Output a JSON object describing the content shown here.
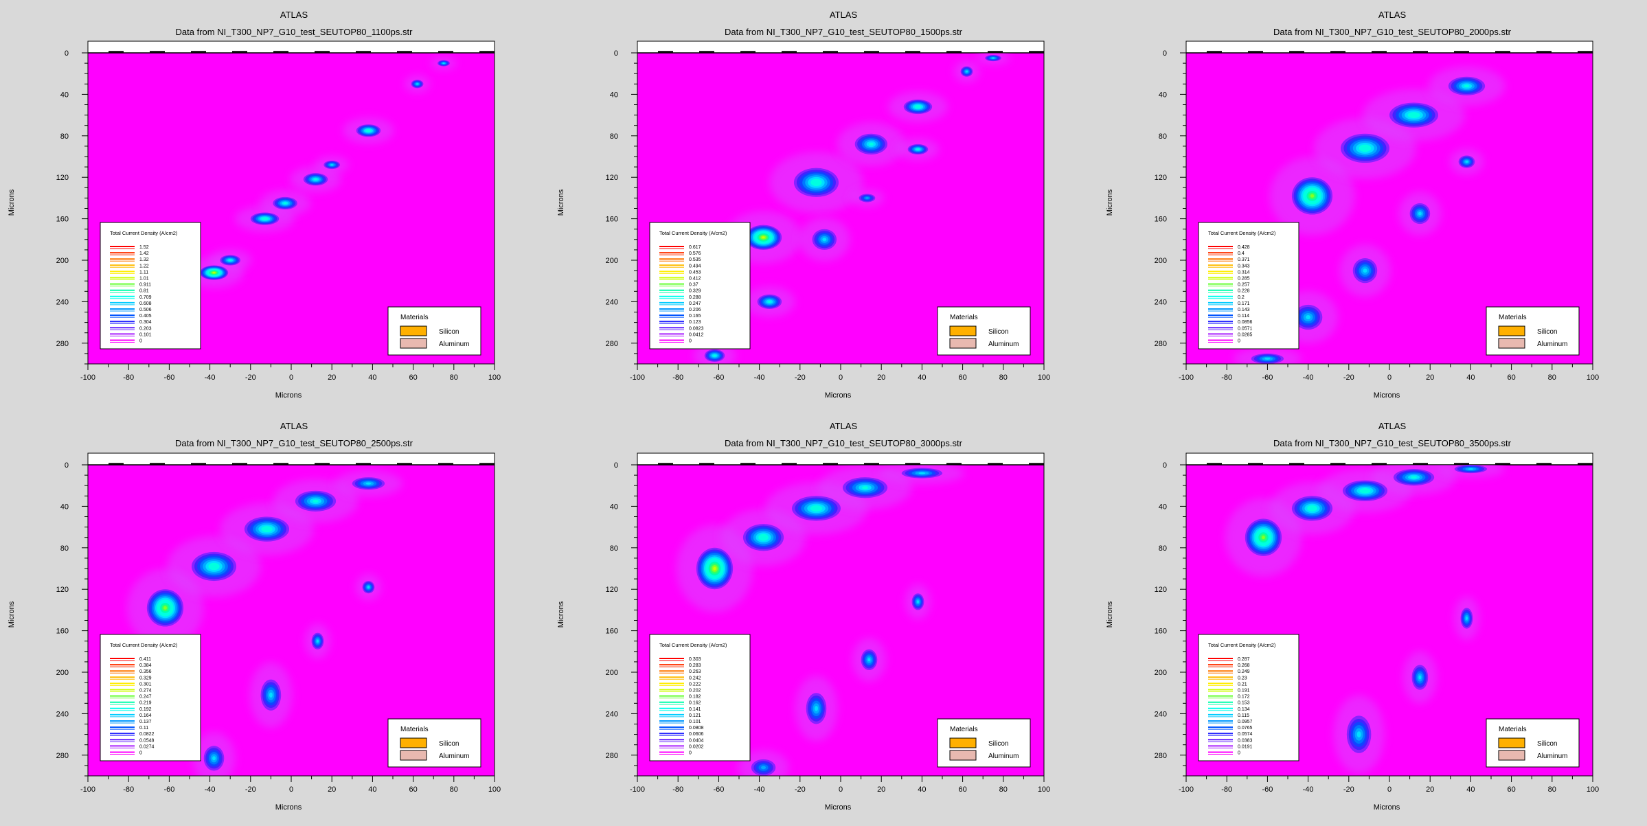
{
  "chart_data": [
    {
      "type": "heatmap",
      "product": "ATLAS",
      "title": "Data from NI_T300_NP7_G10_test_SEUTOP80_1100ps.str",
      "xlabel": "Microns",
      "ylabel": "Microns",
      "xlim": [
        -100,
        100
      ],
      "ylim": [
        0,
        300
      ],
      "y_inverted": true,
      "xticks": [
        "-100",
        "-80",
        "-60",
        "-40",
        "-20",
        "0",
        "20",
        "40",
        "60",
        "80",
        "100"
      ],
      "yticks": [
        "0",
        "40",
        "80",
        "120",
        "160",
        "200",
        "240",
        "280"
      ],
      "legend_title": "Total Current Density (A/cm2)",
      "legend_values": [
        "1.52",
        "1.42",
        "1.32",
        "1.22",
        "1.11",
        "1.01",
        "0.911",
        "0.81",
        "0.709",
        "0.608",
        "0.506",
        "0.405",
        "0.304",
        "0.203",
        "0.101",
        "0"
      ],
      "materials_title": "Materials",
      "materials": [
        {
          "name": "Silicon",
          "color": "#ffb000"
        },
        {
          "name": "Aluminum",
          "color": "#e8b9b0"
        }
      ],
      "hotspots": [
        {
          "x": -38,
          "y": 212,
          "rx": 7,
          "ry": 7,
          "level": 0.95
        },
        {
          "x": -30,
          "y": 200,
          "rx": 5,
          "ry": 5,
          "level": 0.5
        },
        {
          "x": -13,
          "y": 160,
          "rx": 7,
          "ry": 6,
          "level": 0.55
        },
        {
          "x": -3,
          "y": 145,
          "rx": 6,
          "ry": 6,
          "level": 0.5
        },
        {
          "x": 12,
          "y": 122,
          "rx": 6,
          "ry": 6,
          "level": 0.5
        },
        {
          "x": 20,
          "y": 108,
          "rx": 4,
          "ry": 4,
          "level": 0.4
        },
        {
          "x": 38,
          "y": 75,
          "rx": 6,
          "ry": 6,
          "level": 0.55
        },
        {
          "x": 62,
          "y": 30,
          "rx": 3,
          "ry": 4,
          "level": 0.45
        },
        {
          "x": 75,
          "y": 10,
          "rx": 3,
          "ry": 3,
          "level": 0.4
        }
      ]
    },
    {
      "type": "heatmap",
      "product": "ATLAS",
      "title": "Data from NI_T300_NP7_G10_test_SEUTOP80_1500ps.str",
      "xlabel": "Microns",
      "ylabel": "Microns",
      "xlim": [
        -100,
        100
      ],
      "ylim": [
        0,
        300
      ],
      "y_inverted": true,
      "xticks": [
        "-100",
        "-80",
        "-60",
        "-40",
        "-20",
        "0",
        "20",
        "40",
        "60",
        "80",
        "100"
      ],
      "yticks": [
        "0",
        "40",
        "80",
        "120",
        "160",
        "200",
        "240",
        "280"
      ],
      "legend_title": "Total Current Density (A/cm2)",
      "legend_values": [
        "0.617",
        "0.576",
        "0.535",
        "0.494",
        "0.453",
        "0.412",
        "0.37",
        "0.329",
        "0.288",
        "0.247",
        "0.206",
        "0.165",
        "0.123",
        "0.0823",
        "0.0412",
        "0"
      ],
      "materials_title": "Materials",
      "materials": [
        {
          "name": "Silicon",
          "color": "#ffb000"
        },
        {
          "name": "Aluminum",
          "color": "#e8b9b0"
        }
      ],
      "hotspots": [
        {
          "x": -62,
          "y": 292,
          "rx": 5,
          "ry": 6,
          "level": 0.5
        },
        {
          "x": -38,
          "y": 178,
          "rx": 9,
          "ry": 12,
          "level": 0.9
        },
        {
          "x": -35,
          "y": 240,
          "rx": 6,
          "ry": 7,
          "level": 0.5
        },
        {
          "x": -12,
          "y": 125,
          "rx": 11,
          "ry": 14,
          "level": 0.55
        },
        {
          "x": -8,
          "y": 180,
          "rx": 6,
          "ry": 10,
          "level": 0.45
        },
        {
          "x": 15,
          "y": 88,
          "rx": 8,
          "ry": 10,
          "level": 0.5
        },
        {
          "x": 13,
          "y": 140,
          "rx": 4,
          "ry": 4,
          "level": 0.35
        },
        {
          "x": 38,
          "y": 52,
          "rx": 7,
          "ry": 7,
          "level": 0.6
        },
        {
          "x": 38,
          "y": 93,
          "rx": 5,
          "ry": 5,
          "level": 0.5
        },
        {
          "x": 62,
          "y": 18,
          "rx": 3,
          "ry": 5,
          "level": 0.4
        },
        {
          "x": 75,
          "y": 5,
          "rx": 4,
          "ry": 3,
          "level": 0.4
        }
      ]
    },
    {
      "type": "heatmap",
      "product": "ATLAS",
      "title": "Data from NI_T300_NP7_G10_test_SEUTOP80_2000ps.str",
      "xlabel": "Microns",
      "ylabel": "Microns",
      "xlim": [
        -100,
        100
      ],
      "ylim": [
        0,
        300
      ],
      "y_inverted": true,
      "xticks": [
        "-100",
        "-80",
        "-60",
        "-40",
        "-20",
        "0",
        "20",
        "40",
        "60",
        "80",
        "100"
      ],
      "yticks": [
        "0",
        "40",
        "80",
        "120",
        "160",
        "200",
        "240",
        "280"
      ],
      "legend_title": "Total Current Density (A/cm2)",
      "legend_values": [
        "0.428",
        "0.4",
        "0.371",
        "0.343",
        "0.314",
        "0.285",
        "0.257",
        "0.228",
        "0.2",
        "0.171",
        "0.143",
        "0.114",
        "0.0856",
        "0.0571",
        "0.0285",
        "0"
      ],
      "materials_title": "Materials",
      "materials": [
        {
          "name": "Silicon",
          "color": "#ffb000"
        },
        {
          "name": "Aluminum",
          "color": "#e8b9b0"
        }
      ],
      "hotspots": [
        {
          "x": -60,
          "y": 295,
          "rx": 8,
          "ry": 5,
          "level": 0.4
        },
        {
          "x": -38,
          "y": 138,
          "rx": 10,
          "ry": 18,
          "level": 0.8
        },
        {
          "x": -12,
          "y": 92,
          "rx": 12,
          "ry": 14,
          "level": 0.6
        },
        {
          "x": 12,
          "y": 60,
          "rx": 12,
          "ry": 12,
          "level": 0.55
        },
        {
          "x": 38,
          "y": 32,
          "rx": 9,
          "ry": 9,
          "level": 0.5
        },
        {
          "x": 38,
          "y": 105,
          "rx": 4,
          "ry": 6,
          "level": 0.45
        },
        {
          "x": 15,
          "y": 155,
          "rx": 5,
          "ry": 10,
          "level": 0.4
        },
        {
          "x": -12,
          "y": 210,
          "rx": 6,
          "ry": 12,
          "level": 0.4
        },
        {
          "x": -40,
          "y": 255,
          "rx": 7,
          "ry": 12,
          "level": 0.4
        }
      ]
    },
    {
      "type": "heatmap",
      "product": "ATLAS",
      "title": "Data from NI_T300_NP7_G10_test_SEUTOP80_2500ps.str",
      "xlabel": "Microns",
      "ylabel": "Microns",
      "xlim": [
        -100,
        100
      ],
      "ylim": [
        0,
        300
      ],
      "y_inverted": true,
      "xticks": [
        "-100",
        "-80",
        "-60",
        "-40",
        "-20",
        "0",
        "20",
        "40",
        "60",
        "80",
        "100"
      ],
      "yticks": [
        "0",
        "40",
        "80",
        "120",
        "160",
        "200",
        "240",
        "280"
      ],
      "legend_title": "Total Current Density (A/cm2)",
      "legend_values": [
        "0.411",
        "0.384",
        "0.356",
        "0.329",
        "0.301",
        "0.274",
        "0.247",
        "0.219",
        "0.192",
        "0.164",
        "0.137",
        "0.11",
        "0.0822",
        "0.0548",
        "0.0274",
        "0"
      ],
      "materials_title": "Materials",
      "materials": [
        {
          "name": "Silicon",
          "color": "#ffb000"
        },
        {
          "name": "Aluminum",
          "color": "#e8b9b0"
        }
      ],
      "hotspots": [
        {
          "x": -62,
          "y": 138,
          "rx": 9,
          "ry": 18,
          "level": 0.85
        },
        {
          "x": -38,
          "y": 98,
          "rx": 11,
          "ry": 14,
          "level": 0.6
        },
        {
          "x": -12,
          "y": 62,
          "rx": 11,
          "ry": 12,
          "level": 0.55
        },
        {
          "x": 12,
          "y": 35,
          "rx": 10,
          "ry": 10,
          "level": 0.5
        },
        {
          "x": 38,
          "y": 18,
          "rx": 8,
          "ry": 6,
          "level": 0.45
        },
        {
          "x": 38,
          "y": 118,
          "rx": 3,
          "ry": 6,
          "level": 0.45
        },
        {
          "x": 13,
          "y": 170,
          "rx": 3,
          "ry": 8,
          "level": 0.4
        },
        {
          "x": -10,
          "y": 222,
          "rx": 5,
          "ry": 15,
          "level": 0.4
        },
        {
          "x": -38,
          "y": 283,
          "rx": 5,
          "ry": 12,
          "level": 0.4
        }
      ]
    },
    {
      "type": "heatmap",
      "product": "ATLAS",
      "title": "Data from NI_T300_NP7_G10_test_SEUTOP80_3000ps.str",
      "xlabel": "Microns",
      "ylabel": "Microns",
      "xlim": [
        -100,
        100
      ],
      "ylim": [
        0,
        300
      ],
      "y_inverted": true,
      "xticks": [
        "-100",
        "-80",
        "-60",
        "-40",
        "-20",
        "0",
        "20",
        "40",
        "60",
        "80",
        "100"
      ],
      "yticks": [
        "0",
        "40",
        "80",
        "120",
        "160",
        "200",
        "240",
        "280"
      ],
      "legend_title": "Total Current Density (A/cm2)",
      "legend_values": [
        "0.303",
        "0.283",
        "0.263",
        "0.242",
        "0.222",
        "0.202",
        "0.182",
        "0.162",
        "0.141",
        "0.121",
        "0.101",
        "0.0808",
        "0.0606",
        "0.0404",
        "0.0202",
        "0"
      ],
      "materials_title": "Materials",
      "materials": [
        {
          "name": "Silicon",
          "color": "#ffb000"
        },
        {
          "name": "Aluminum",
          "color": "#e8b9b0"
        }
      ],
      "hotspots": [
        {
          "x": -62,
          "y": 100,
          "rx": 9,
          "ry": 20,
          "level": 0.9
        },
        {
          "x": -38,
          "y": 70,
          "rx": 10,
          "ry": 13,
          "level": 0.6
        },
        {
          "x": -12,
          "y": 42,
          "rx": 12,
          "ry": 12,
          "level": 0.55
        },
        {
          "x": 12,
          "y": 22,
          "rx": 11,
          "ry": 10,
          "level": 0.5
        },
        {
          "x": 40,
          "y": 8,
          "rx": 10,
          "ry": 5,
          "level": 0.4
        },
        {
          "x": 38,
          "y": 132,
          "rx": 3,
          "ry": 8,
          "level": 0.45
        },
        {
          "x": 14,
          "y": 188,
          "rx": 4,
          "ry": 10,
          "level": 0.4
        },
        {
          "x": -12,
          "y": 235,
          "rx": 5,
          "ry": 15,
          "level": 0.4
        },
        {
          "x": -38,
          "y": 292,
          "rx": 6,
          "ry": 8,
          "level": 0.35
        }
      ]
    },
    {
      "type": "heatmap",
      "product": "ATLAS",
      "title": "Data from NI_T300_NP7_G10_test_SEUTOP80_3500ps.str",
      "xlabel": "Microns",
      "ylabel": "Microns",
      "xlim": [
        -100,
        100
      ],
      "ylim": [
        0,
        300
      ],
      "y_inverted": true,
      "xticks": [
        "-100",
        "-80",
        "-60",
        "-40",
        "-20",
        "0",
        "20",
        "40",
        "60",
        "80",
        "100"
      ],
      "yticks": [
        "0",
        "40",
        "80",
        "120",
        "160",
        "200",
        "240",
        "280"
      ],
      "legend_title": "Total Current Density (A/cm2)",
      "legend_values": [
        "0.287",
        "0.268",
        "0.249",
        "0.23",
        "0.21",
        "0.191",
        "0.172",
        "0.153",
        "0.134",
        "0.115",
        "0.0957",
        "0.0765",
        "0.0574",
        "0.0383",
        "0.0191",
        "0"
      ],
      "materials_title": "Materials",
      "materials": [
        {
          "name": "Silicon",
          "color": "#ffb000"
        },
        {
          "name": "Aluminum",
          "color": "#e8b9b0"
        }
      ],
      "hotspots": [
        {
          "x": -62,
          "y": 70,
          "rx": 9,
          "ry": 18,
          "level": 0.85
        },
        {
          "x": -38,
          "y": 42,
          "rx": 10,
          "ry": 12,
          "level": 0.6
        },
        {
          "x": -12,
          "y": 25,
          "rx": 11,
          "ry": 10,
          "level": 0.55
        },
        {
          "x": 12,
          "y": 12,
          "rx": 10,
          "ry": 8,
          "level": 0.5
        },
        {
          "x": 40,
          "y": 4,
          "rx": 8,
          "ry": 4,
          "level": 0.4
        },
        {
          "x": 38,
          "y": 148,
          "rx": 3,
          "ry": 10,
          "level": 0.45
        },
        {
          "x": 15,
          "y": 205,
          "rx": 4,
          "ry": 12,
          "level": 0.4
        },
        {
          "x": -15,
          "y": 260,
          "rx": 6,
          "ry": 18,
          "level": 0.4
        }
      ]
    }
  ]
}
